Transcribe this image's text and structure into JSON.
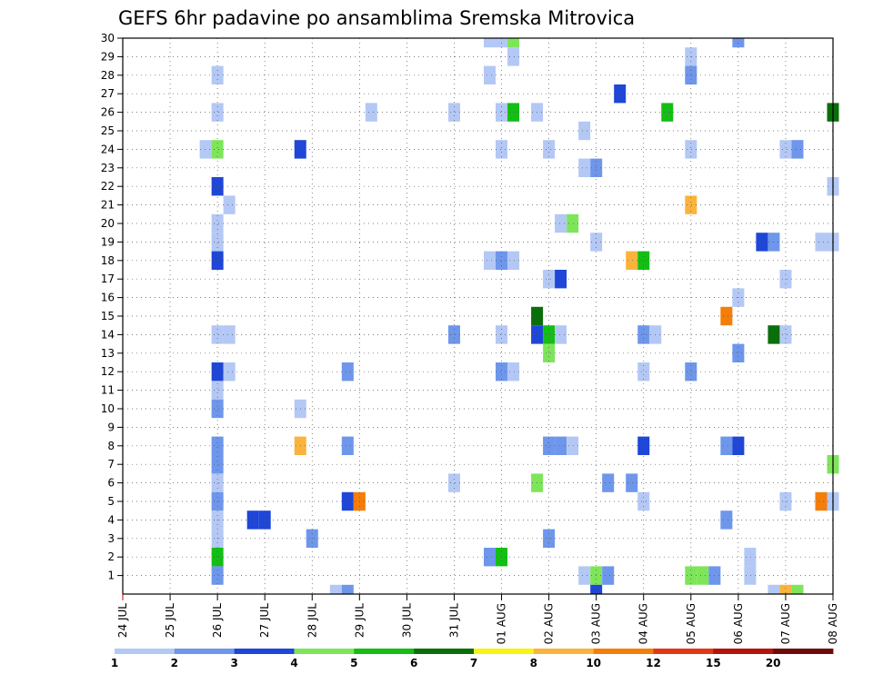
{
  "chart_data": {
    "type": "heatmap",
    "title": "GEFS 6hr padavine po ansamblima Sremska Mitrovica",
    "x_tick_labels": [
      "24 JUL",
      "25 JUL",
      "26 JUL",
      "27 JUL",
      "28 JUL",
      "29 JUL",
      "30 JUL",
      "31 JUL",
      "01 AUG",
      "02 AUG",
      "03 AUG",
      "04 AUG",
      "05 AUG",
      "06 AUG",
      "07 AUG",
      "08 AUG"
    ],
    "y_tick_labels": [
      "1",
      "2",
      "3",
      "4",
      "5",
      "6",
      "7",
      "8",
      "9",
      "10",
      "11",
      "12",
      "13",
      "14",
      "15",
      "16",
      "17",
      "18",
      "19",
      "20",
      "21",
      "22",
      "23",
      "24",
      "25",
      "26",
      "27",
      "28",
      "29",
      "30"
    ],
    "xlim": [
      0,
      15
    ],
    "ylim": [
      0,
      30
    ],
    "grid": true,
    "colorbar": {
      "levels": [
        "1",
        "2",
        "3",
        "4",
        "5",
        "6",
        "7",
        "8",
        "10",
        "12",
        "15",
        "20"
      ],
      "colors": [
        "#b4c8f5",
        "#6e96eb",
        "#1e46d7",
        "#7ee55a",
        "#14be14",
        "#0a6e0a",
        "#f5f514",
        "#fab43c",
        "#f57d0a",
        "#e13714",
        "#b4140a",
        "#6e0a0a"
      ]
    },
    "cells": [
      {
        "day": 2.0,
        "member": 28,
        "category": 0
      },
      {
        "day": 2.0,
        "member": 26,
        "category": 0
      },
      {
        "day": 1.75,
        "member": 24,
        "category": 0
      },
      {
        "day": 2.0,
        "member": 24,
        "category": 3
      },
      {
        "day": 2.0,
        "member": 22,
        "category": 2
      },
      {
        "day": 2.25,
        "member": 21,
        "category": 0
      },
      {
        "day": 2.0,
        "member": 20,
        "category": 0
      },
      {
        "day": 2.0,
        "member": 19,
        "category": 0
      },
      {
        "day": 2.0,
        "member": 18,
        "category": 2
      },
      {
        "day": 2.0,
        "member": 14,
        "category": 0
      },
      {
        "day": 2.25,
        "member": 14,
        "category": 0
      },
      {
        "day": 2.0,
        "member": 12,
        "category": 2
      },
      {
        "day": 2.25,
        "member": 12,
        "category": 0
      },
      {
        "day": 2.0,
        "member": 11,
        "category": 0
      },
      {
        "day": 2.0,
        "member": 10,
        "category": 1
      },
      {
        "day": 2.0,
        "member": 8,
        "category": 1
      },
      {
        "day": 2.0,
        "member": 7,
        "category": 1
      },
      {
        "day": 2.0,
        "member": 6,
        "category": 0
      },
      {
        "day": 2.0,
        "member": 5,
        "category": 1
      },
      {
        "day": 2.0,
        "member": 4,
        "category": 0
      },
      {
        "day": 2.0,
        "member": 3,
        "category": 0
      },
      {
        "day": 2.0,
        "member": 2,
        "category": 4
      },
      {
        "day": 2.0,
        "member": 1,
        "category": 1
      },
      {
        "day": 2.75,
        "member": 4,
        "category": 2
      },
      {
        "day": 3.0,
        "member": 4,
        "category": 2
      },
      {
        "day": 3.75,
        "member": 24,
        "category": 2
      },
      {
        "day": 3.75,
        "member": 10,
        "category": 0
      },
      {
        "day": 3.75,
        "member": 8,
        "category": 7
      },
      {
        "day": 4.0,
        "member": 3,
        "category": 1
      },
      {
        "day": 4.75,
        "member": 12,
        "category": 1
      },
      {
        "day": 4.75,
        "member": 8,
        "category": 1
      },
      {
        "day": 4.75,
        "member": 5,
        "category": 2
      },
      {
        "day": 5.0,
        "member": 5,
        "category": 8
      },
      {
        "day": 5.25,
        "member": 26,
        "category": 0
      },
      {
        "day": 4.5,
        "member": 0,
        "category": 0
      },
      {
        "day": 4.75,
        "member": 0,
        "category": 1
      },
      {
        "day": 7.0,
        "member": 26,
        "category": 0
      },
      {
        "day": 7.0,
        "member": 14,
        "category": 1
      },
      {
        "day": 7.0,
        "member": 6,
        "category": 0
      },
      {
        "day": 7.75,
        "member": 30,
        "category": 0
      },
      {
        "day": 8.0,
        "member": 30,
        "category": 0
      },
      {
        "day": 8.25,
        "member": 30,
        "category": 3
      },
      {
        "day": 8.25,
        "member": 29,
        "category": 0
      },
      {
        "day": 7.75,
        "member": 28,
        "category": 0
      },
      {
        "day": 8.0,
        "member": 26,
        "category": 0
      },
      {
        "day": 8.25,
        "member": 26,
        "category": 4
      },
      {
        "day": 8.0,
        "member": 24,
        "category": 0
      },
      {
        "day": 7.75,
        "member": 18,
        "category": 0
      },
      {
        "day": 8.0,
        "member": 18,
        "category": 1
      },
      {
        "day": 8.25,
        "member": 18,
        "category": 0
      },
      {
        "day": 8.0,
        "member": 14,
        "category": 0
      },
      {
        "day": 8.0,
        "member": 12,
        "category": 1
      },
      {
        "day": 8.25,
        "member": 12,
        "category": 0
      },
      {
        "day": 7.75,
        "member": 2,
        "category": 1
      },
      {
        "day": 8.0,
        "member": 2,
        "category": 4
      },
      {
        "day": 8.75,
        "member": 26,
        "category": 0
      },
      {
        "day": 9.0,
        "member": 24,
        "category": 0
      },
      {
        "day": 9.0,
        "member": 17,
        "category": 0
      },
      {
        "day": 9.25,
        "member": 17,
        "category": 2
      },
      {
        "day": 8.75,
        "member": 15,
        "category": 5
      },
      {
        "day": 8.75,
        "member": 14,
        "category": 2
      },
      {
        "day": 9.0,
        "member": 14,
        "category": 4
      },
      {
        "day": 9.25,
        "member": 14,
        "category": 0
      },
      {
        "day": 9.0,
        "member": 13,
        "category": 3
      },
      {
        "day": 9.0,
        "member": 8,
        "category": 1
      },
      {
        "day": 9.25,
        "member": 8,
        "category": 1
      },
      {
        "day": 9.5,
        "member": 8,
        "category": 0
      },
      {
        "day": 8.75,
        "member": 6,
        "category": 3
      },
      {
        "day": 9.0,
        "member": 3,
        "category": 1
      },
      {
        "day": 9.25,
        "member": 20,
        "category": 0
      },
      {
        "day": 9.5,
        "member": 20,
        "category": 3
      },
      {
        "day": 9.75,
        "member": 25,
        "category": 0
      },
      {
        "day": 9.75,
        "member": 23,
        "category": 0
      },
      {
        "day": 10.0,
        "member": 23,
        "category": 1
      },
      {
        "day": 10.0,
        "member": 19,
        "category": 0
      },
      {
        "day": 10.25,
        "member": 6,
        "category": 1
      },
      {
        "day": 9.75,
        "member": 1,
        "category": 0
      },
      {
        "day": 10.0,
        "member": 1,
        "category": 3
      },
      {
        "day": 10.25,
        "member": 1,
        "category": 1
      },
      {
        "day": 10.0,
        "member": 0,
        "category": 2
      },
      {
        "day": 10.5,
        "member": 27,
        "category": 2
      },
      {
        "day": 10.75,
        "member": 18,
        "category": 7
      },
      {
        "day": 11.0,
        "member": 18,
        "category": 4
      },
      {
        "day": 10.75,
        "member": 6,
        "category": 1
      },
      {
        "day": 11.0,
        "member": 14,
        "category": 1
      },
      {
        "day": 11.25,
        "member": 14,
        "category": 0
      },
      {
        "day": 11.0,
        "member": 12,
        "category": 0
      },
      {
        "day": 11.0,
        "member": 8,
        "category": 2
      },
      {
        "day": 11.0,
        "member": 5,
        "category": 0
      },
      {
        "day": 11.5,
        "member": 26,
        "category": 4
      },
      {
        "day": 12.0,
        "member": 29,
        "category": 0
      },
      {
        "day": 12.0,
        "member": 28,
        "category": 1
      },
      {
        "day": 12.0,
        "member": 24,
        "category": 0
      },
      {
        "day": 12.0,
        "member": 21,
        "category": 7
      },
      {
        "day": 12.0,
        "member": 12,
        "category": 1
      },
      {
        "day": 12.0,
        "member": 1,
        "category": 3
      },
      {
        "day": 12.25,
        "member": 1,
        "category": 3
      },
      {
        "day": 12.5,
        "member": 1,
        "category": 1
      },
      {
        "day": 12.75,
        "member": 15,
        "category": 8
      },
      {
        "day": 12.75,
        "member": 8,
        "category": 1
      },
      {
        "day": 13.0,
        "member": 8,
        "category": 2
      },
      {
        "day": 12.75,
        "member": 4,
        "category": 1
      },
      {
        "day": 13.0,
        "member": 30,
        "category": 1
      },
      {
        "day": 13.0,
        "member": 16,
        "category": 0
      },
      {
        "day": 13.0,
        "member": 13,
        "category": 1
      },
      {
        "day": 13.25,
        "member": 2,
        "category": 0
      },
      {
        "day": 13.25,
        "member": 1,
        "category": 0
      },
      {
        "day": 13.5,
        "member": 19,
        "category": 2
      },
      {
        "day": 13.75,
        "member": 19,
        "category": 1
      },
      {
        "day": 13.75,
        "member": 14,
        "category": 5
      },
      {
        "day": 14.0,
        "member": 24,
        "category": 0
      },
      {
        "day": 14.25,
        "member": 24,
        "category": 1
      },
      {
        "day": 14.0,
        "member": 17,
        "category": 0
      },
      {
        "day": 14.0,
        "member": 14,
        "category": 0
      },
      {
        "day": 14.0,
        "member": 5,
        "category": 0
      },
      {
        "day": 14.75,
        "member": 19,
        "category": 0
      },
      {
        "day": 15.0,
        "member": 19,
        "category": 0
      },
      {
        "day": 14.75,
        "member": 5,
        "category": 8
      },
      {
        "day": 15.0,
        "member": 5,
        "category": 0
      },
      {
        "day": 15.0,
        "member": 22,
        "category": 0
      },
      {
        "day": 15.0,
        "member": 26,
        "category": 5
      },
      {
        "day": 15.0,
        "member": 7,
        "category": 3
      },
      {
        "day": 13.75,
        "member": 0,
        "category": 0
      },
      {
        "day": 14.0,
        "member": 0,
        "category": 7
      },
      {
        "day": 14.25,
        "member": 0,
        "category": 3
      }
    ]
  }
}
